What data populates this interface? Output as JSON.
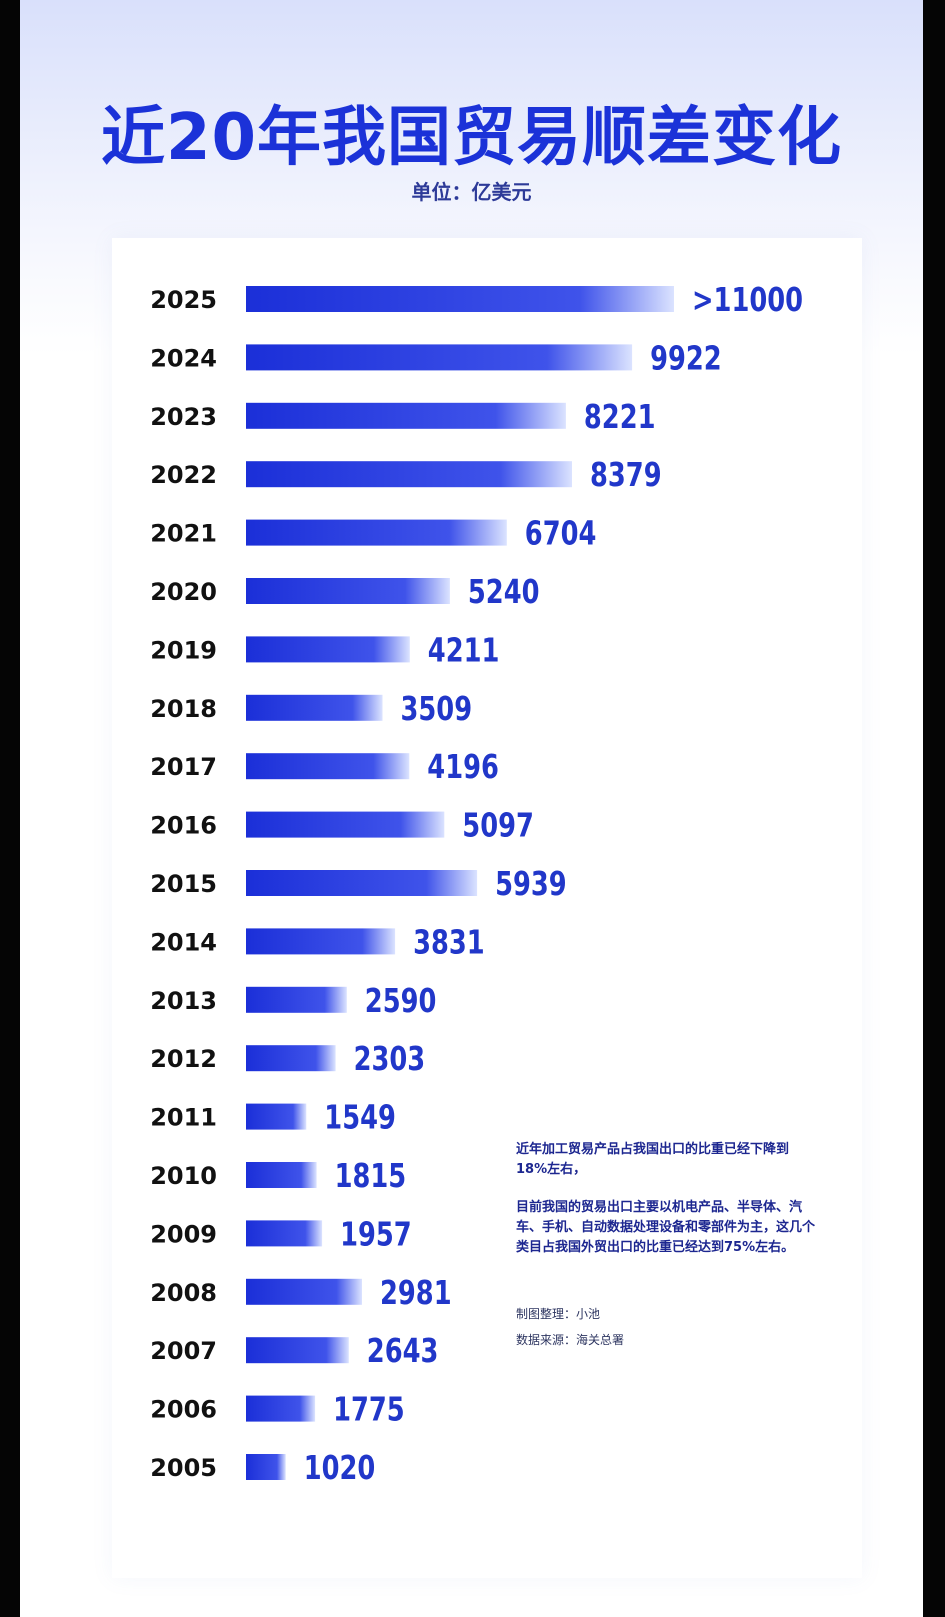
{
  "chart_data": {
    "type": "bar",
    "orientation": "horizontal",
    "title": "近20年我国贸易顺差变化",
    "subtitle": "单位：亿美元",
    "categories": [
      "2025",
      "2024",
      "2023",
      "2022",
      "2021",
      "2020",
      "2019",
      "2018",
      "2017",
      "2016",
      "2015",
      "2014",
      "2013",
      "2012",
      "2011",
      "2010",
      "2009",
      "2008",
      "2007",
      "2006",
      "2005"
    ],
    "values": [
      11000,
      9922,
      8221,
      8379,
      6704,
      5240,
      4211,
      3509,
      4196,
      5097,
      5939,
      3831,
      2590,
      2303,
      1549,
      1815,
      1957,
      2981,
      2643,
      1775,
      1020
    ],
    "value_labels": [
      ">11000",
      "9922",
      "8221",
      "8379",
      "6704",
      "5240",
      "4211",
      "3509",
      "4196",
      "5097",
      "5939",
      "3831",
      "2590",
      "2303",
      "1549",
      "1815",
      "1957",
      "2981",
      "2643",
      "1775",
      "1020"
    ],
    "xlabel": "",
    "ylabel": "",
    "xlim": [
      0,
      11000
    ],
    "grid": false
  },
  "colors": {
    "title": "#1b32d8",
    "bar_start": "#1b2fd8",
    "bar_end": "#dbe3ff",
    "value_label": "#2137c9",
    "year_label": "#111111"
  },
  "notes": {
    "line1": "近年加工贸易产品占我国出口的比重已经下降到18%左右，",
    "line2": "目前我国的贸易出口主要以机电产品、半导体、汽车、手机、自动数据处理设备和零部件为主，这几个类目占我国外贸出口的比重已经达到75%左右。",
    "credit": "制图整理：小池",
    "source": "数据来源：海关总署"
  }
}
